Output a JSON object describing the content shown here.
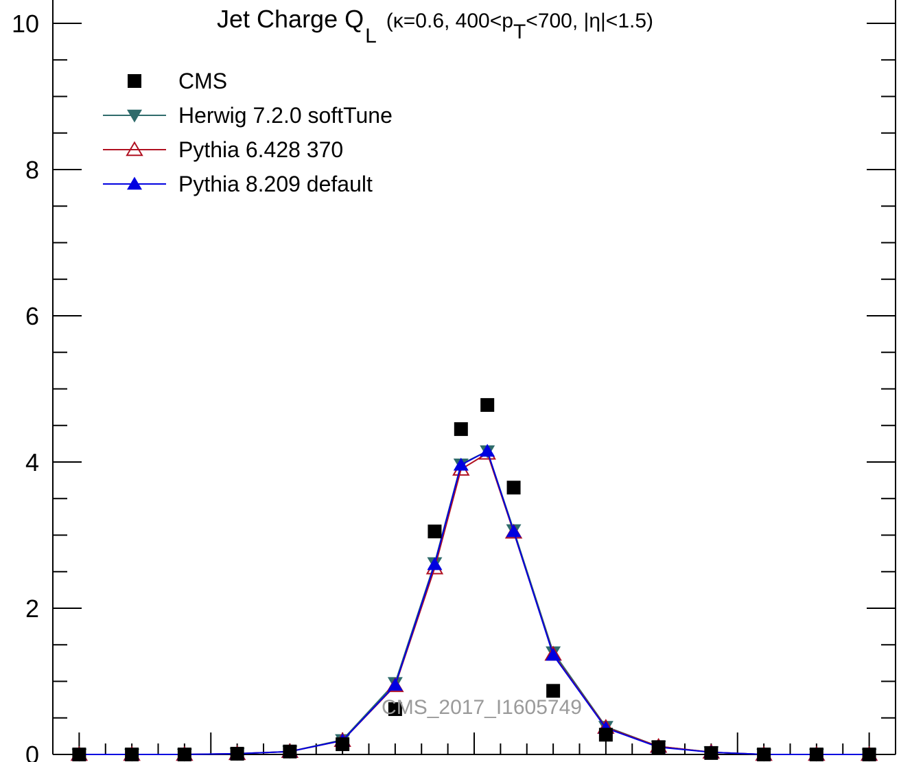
{
  "chart_data": {
    "type": "line",
    "title": {
      "main": "Jet Charge Q",
      "main_sub": "L",
      "params_a": "(κ=0.6, 400<p",
      "params_sub": "T",
      "params_b": "<700, |η|<1.5)"
    },
    "xlabel": "",
    "ylabel": "",
    "ylim": [
      0,
      10
    ],
    "y_ticks": [
      "0",
      "2",
      "4",
      "6",
      "8",
      "10"
    ],
    "x": [
      -1.5,
      -1.3,
      -1.1,
      -0.9,
      -0.7,
      -0.5,
      -0.3,
      -0.15,
      -0.05,
      0.05,
      0.15,
      0.3,
      0.5,
      0.7,
      0.9,
      1.1,
      1.3,
      1.5
    ],
    "series": [
      {
        "name": "CMS",
        "marker": "square",
        "color": "#000000",
        "values": [
          0.0,
          0.0,
          0.0,
          0.01,
          0.04,
          0.14,
          0.62,
          3.05,
          4.45,
          4.78,
          3.65,
          0.87,
          0.27,
          0.1,
          0.02,
          0.0,
          0.0,
          0.0
        ]
      },
      {
        "name": "Herwig 7.2.0 softTune",
        "marker": "triangle-down",
        "color": "#2f6b6b",
        "values": [
          0.0,
          0.0,
          0.0,
          0.01,
          0.04,
          0.2,
          0.98,
          2.62,
          3.97,
          4.15,
          3.07,
          1.4,
          0.38,
          0.11,
          0.03,
          0.0,
          0.0,
          0.0
        ]
      },
      {
        "name": "Pythia 6.428 370",
        "marker": "triangle-up-open",
        "color": "#b01020",
        "values": [
          0.0,
          0.0,
          0.0,
          0.01,
          0.04,
          0.19,
          0.94,
          2.55,
          3.9,
          4.12,
          3.04,
          1.37,
          0.37,
          0.11,
          0.03,
          0.0,
          0.0,
          0.0
        ]
      },
      {
        "name": "Pythia 8.209 default",
        "marker": "triangle-up",
        "color": "#0000e0",
        "values": [
          0.0,
          0.0,
          0.0,
          0.01,
          0.04,
          0.19,
          0.95,
          2.6,
          3.96,
          4.15,
          3.05,
          1.36,
          0.36,
          0.1,
          0.03,
          0.0,
          0.0,
          0.0
        ]
      }
    ],
    "legend": {
      "placement": "top-left"
    },
    "watermark": "CMS_2017_I1605749",
    "grid": false
  }
}
